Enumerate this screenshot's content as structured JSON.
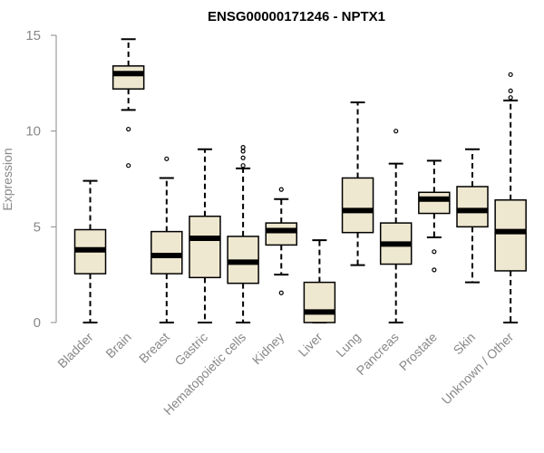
{
  "chart_data": {
    "type": "boxplot",
    "title": "ENSG00000171246 - NPTX1",
    "xlabel": "",
    "ylabel": "Expression",
    "ylim": [
      0,
      15
    ],
    "yticks": [
      0,
      5,
      10,
      15
    ],
    "grid": false,
    "legend": "none",
    "colors": {
      "box_fill": "#EFE8D0",
      "box_stroke": "#000000",
      "median": "#000000",
      "axis": "#888888",
      "tick_label": "#888888"
    },
    "categories": [
      "Bladder",
      "Brain",
      "Breast",
      "Gastric",
      "Hematopoietic cells",
      "Kidney",
      "Liver",
      "Lung",
      "Pancreas",
      "Prostate",
      "Skin",
      "Unknown / Other"
    ],
    "boxes": [
      {
        "q1": 2.55,
        "median": 3.8,
        "q3": 4.85,
        "whisker_low": 0.0,
        "whisker_high": 7.4,
        "outliers": []
      },
      {
        "q1": 12.2,
        "median": 13.0,
        "q3": 13.4,
        "whisker_low": 11.1,
        "whisker_high": 14.8,
        "outliers": [
          10.1,
          8.2
        ]
      },
      {
        "q1": 2.55,
        "median": 3.5,
        "q3": 4.75,
        "whisker_low": 0.0,
        "whisker_high": 7.55,
        "outliers": [
          8.55
        ]
      },
      {
        "q1": 2.35,
        "median": 4.4,
        "q3": 5.55,
        "whisker_low": 0.0,
        "whisker_high": 9.05,
        "outliers": []
      },
      {
        "q1": 2.05,
        "median": 3.15,
        "q3": 4.5,
        "whisker_low": 0.0,
        "whisker_high": 8.05,
        "outliers": [
          8.2,
          8.6,
          8.95,
          9.15
        ]
      },
      {
        "q1": 4.05,
        "median": 4.8,
        "q3": 5.2,
        "whisker_low": 2.5,
        "whisker_high": 6.45,
        "outliers": [
          6.95,
          1.55
        ]
      },
      {
        "q1": 0.0,
        "median": 0.55,
        "q3": 2.1,
        "whisker_low": 0.0,
        "whisker_high": 4.3,
        "outliers": []
      },
      {
        "q1": 4.7,
        "median": 5.85,
        "q3": 7.55,
        "whisker_low": 3.0,
        "whisker_high": 11.5,
        "outliers": []
      },
      {
        "q1": 3.05,
        "median": 4.1,
        "q3": 5.2,
        "whisker_low": 0.0,
        "whisker_high": 8.3,
        "outliers": [
          10.0
        ]
      },
      {
        "q1": 5.7,
        "median": 6.45,
        "q3": 6.8,
        "whisker_low": 4.45,
        "whisker_high": 8.45,
        "outliers": [
          3.7,
          2.75
        ]
      },
      {
        "q1": 5.0,
        "median": 5.85,
        "q3": 7.1,
        "whisker_low": 2.1,
        "whisker_high": 9.05,
        "outliers": []
      },
      {
        "q1": 2.7,
        "median": 4.75,
        "q3": 6.4,
        "whisker_low": 0.0,
        "whisker_high": 11.6,
        "outliers": [
          11.75,
          12.1,
          12.95
        ]
      }
    ]
  }
}
